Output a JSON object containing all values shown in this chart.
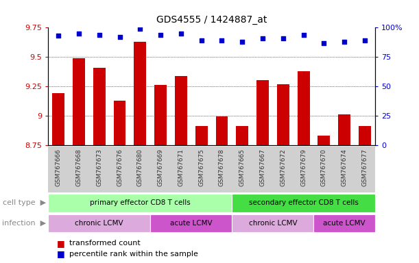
{
  "title": "GDS4555 / 1424887_at",
  "samples": [
    "GSM767666",
    "GSM767668",
    "GSM767673",
    "GSM767676",
    "GSM767680",
    "GSM767669",
    "GSM767671",
    "GSM767675",
    "GSM767678",
    "GSM767665",
    "GSM767667",
    "GSM767672",
    "GSM767679",
    "GSM767670",
    "GSM767674",
    "GSM767677"
  ],
  "bar_values": [
    9.19,
    9.49,
    9.41,
    9.13,
    9.63,
    9.26,
    9.34,
    8.91,
    8.99,
    8.91,
    9.3,
    9.27,
    9.38,
    8.83,
    9.01,
    8.91
  ],
  "dot_values": [
    93,
    95,
    94,
    92,
    99,
    94,
    95,
    89,
    89,
    88,
    91,
    91,
    94,
    87,
    88,
    89
  ],
  "ylim_left": [
    8.75,
    9.75
  ],
  "ylim_right": [
    0,
    100
  ],
  "yticks_left": [
    8.75,
    9.0,
    9.25,
    9.5,
    9.75
  ],
  "yticks_right": [
    0,
    25,
    50,
    75,
    100
  ],
  "ytick_labels_left": [
    "8.75",
    "9",
    "9.25",
    "9.5",
    "9.75"
  ],
  "ytick_labels_right": [
    "0",
    "25",
    "50",
    "75",
    "100%"
  ],
  "bar_color": "#cc0000",
  "dot_color": "#0000cc",
  "plot_bg": "#ffffff",
  "xtick_bg": "#d0d0d0",
  "cell_type_groups": [
    {
      "label": "primary effector CD8 T cells",
      "start": 0,
      "end": 9,
      "color": "#aaffaa"
    },
    {
      "label": "secondary effector CD8 T cells",
      "start": 9,
      "end": 16,
      "color": "#44dd44"
    }
  ],
  "infection_groups": [
    {
      "label": "chronic LCMV",
      "start": 0,
      "end": 5,
      "color": "#ddaadd"
    },
    {
      "label": "acute LCMV",
      "start": 5,
      "end": 9,
      "color": "#cc55cc"
    },
    {
      "label": "chronic LCMV",
      "start": 9,
      "end": 13,
      "color": "#ddaadd"
    },
    {
      "label": "acute LCMV",
      "start": 13,
      "end": 16,
      "color": "#cc55cc"
    }
  ],
  "legend_items": [
    {
      "label": "transformed count",
      "color": "#cc0000"
    },
    {
      "label": "percentile rank within the sample",
      "color": "#0000cc"
    }
  ],
  "xlabel_cell_type": "cell type",
  "xlabel_infection": "infection",
  "arrow_color": "#aaaaaa"
}
